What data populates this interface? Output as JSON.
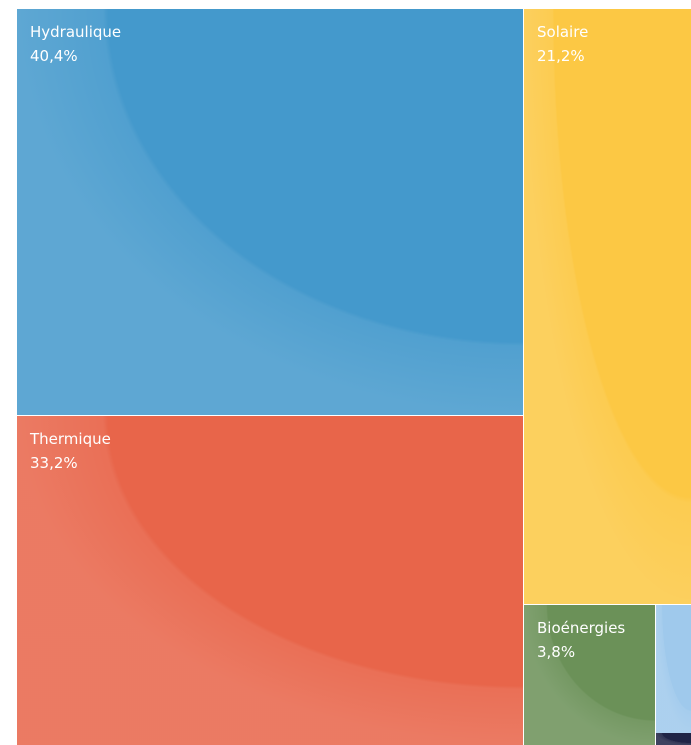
{
  "chart_data": {
    "type": "treemap",
    "title": "",
    "items": [
      {
        "name": "Hydraulique",
        "value": 40.4,
        "label": "40,4%",
        "color": "#4499cc"
      },
      {
        "name": "Thermique",
        "value": 33.2,
        "label": "33,2%",
        "color": "#e8654a"
      },
      {
        "name": "Solaire",
        "value": 21.2,
        "label": "21,2%",
        "color": "#fcc844"
      },
      {
        "name": "Bioénergies",
        "value": 3.8,
        "label": "3,8%",
        "color": "#6b9158"
      },
      {
        "name": "",
        "value": null,
        "label": "",
        "color": "#9fc9ec"
      },
      {
        "name": "",
        "value": null,
        "label": "",
        "color": "#1f2446"
      }
    ]
  }
}
